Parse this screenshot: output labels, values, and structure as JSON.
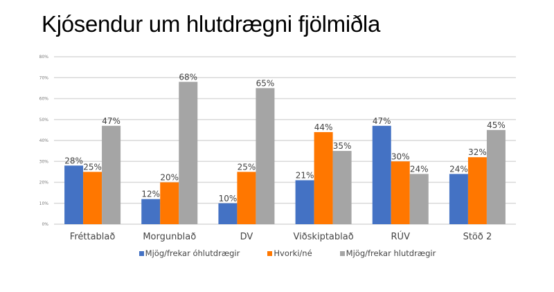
{
  "title": "Kjósendur um hlutdrægni fjölmiðla",
  "chart_data": {
    "type": "bar",
    "title": "Kjósendur um hlutdrægni fjölmiðla",
    "categories": [
      "Fréttablað",
      "Morgunblað",
      "DV",
      "Viðskiptablað",
      "RÚV",
      "Stöð 2"
    ],
    "series": [
      {
        "name": "Mjög/frekar óhlutdrægir",
        "color": "#4472C4",
        "values": [
          28,
          12,
          10,
          21,
          47,
          24
        ]
      },
      {
        "name": "Hvorki/né",
        "color": "#FF7700",
        "values": [
          25,
          20,
          25,
          44,
          30,
          32
        ]
      },
      {
        "name": "Mjög/frekar hlutdrægir",
        "color": "#A5A5A5",
        "values": [
          47,
          68,
          65,
          35,
          24,
          45
        ]
      }
    ],
    "ylim": [
      0,
      80
    ],
    "yticks": [
      "0%",
      "10%",
      "20%",
      "30%",
      "40%",
      "50%",
      "60%",
      "70%",
      "80%"
    ],
    "grid": true,
    "legend": "bottom",
    "xlabel": "",
    "ylabel": ""
  }
}
